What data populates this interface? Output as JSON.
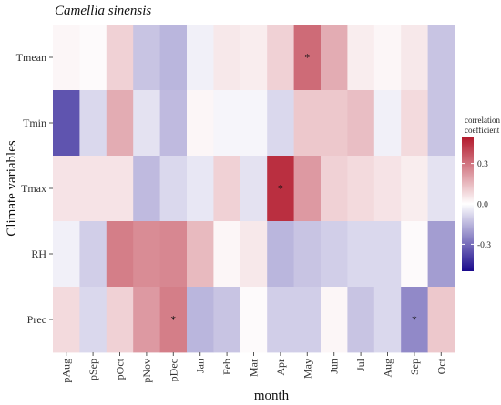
{
  "chart_data": {
    "type": "heatmap",
    "title": "Camellia sinensis",
    "xlabel": "month",
    "ylabel": "Climate variables",
    "x_categories": [
      "pAug",
      "pSep",
      "pOct",
      "pNov",
      "pDec",
      "Jan",
      "Feb",
      "Mar",
      "Apr",
      "May",
      "Jun",
      "Jul",
      "Aug",
      "Sep",
      "Oct"
    ],
    "y_categories": [
      "Tmean",
      "Tmin",
      "Tmax",
      "RH",
      "Prec"
    ],
    "values": [
      [
        0.02,
        0.01,
        0.1,
        -0.12,
        -0.15,
        -0.03,
        0.05,
        0.04,
        0.1,
        0.32,
        0.18,
        0.04,
        0.02,
        0.05,
        -0.12
      ],
      [
        -0.35,
        -0.08,
        0.18,
        -0.06,
        -0.14,
        0.02,
        -0.02,
        -0.02,
        -0.08,
        0.12,
        0.12,
        0.14,
        -0.03,
        0.08,
        -0.12
      ],
      [
        0.06,
        0.06,
        0.06,
        -0.14,
        -0.08,
        -0.05,
        0.1,
        -0.06,
        0.45,
        0.22,
        0.1,
        0.08,
        0.06,
        0.04,
        -0.06
      ],
      [
        -0.03,
        -0.1,
        0.28,
        0.25,
        0.26,
        0.15,
        0.02,
        0.05,
        -0.15,
        -0.12,
        -0.1,
        -0.08,
        -0.08,
        0.01,
        -0.2
      ],
      [
        0.08,
        -0.08,
        0.1,
        0.22,
        0.28,
        -0.15,
        -0.12,
        0.01,
        -0.1,
        -0.1,
        0.02,
        -0.12,
        -0.08,
        -0.24,
        0.12
      ]
    ],
    "significant": [
      {
        "row": "Tmean",
        "col": "May"
      },
      {
        "row": "Tmax",
        "col": "Apr"
      },
      {
        "row": "Prec",
        "col": "pDec"
      },
      {
        "row": "Prec",
        "col": "Sep"
      }
    ],
    "significance_marker": "*",
    "colorbar": {
      "title_line1": "correlation",
      "title_line2": "coefficient",
      "range": [
        -0.5,
        0.5
      ],
      "ticks": [
        0.3,
        0.0,
        -0.3
      ],
      "tick_labels": [
        "0.3",
        "0.0",
        "-0.3"
      ],
      "low_color": "#1a0a8c",
      "mid_color": "#ffffff",
      "high_color": "#b2182b",
      "placement": "right"
    },
    "panel_background": "#ebebeb",
    "grid": false
  }
}
